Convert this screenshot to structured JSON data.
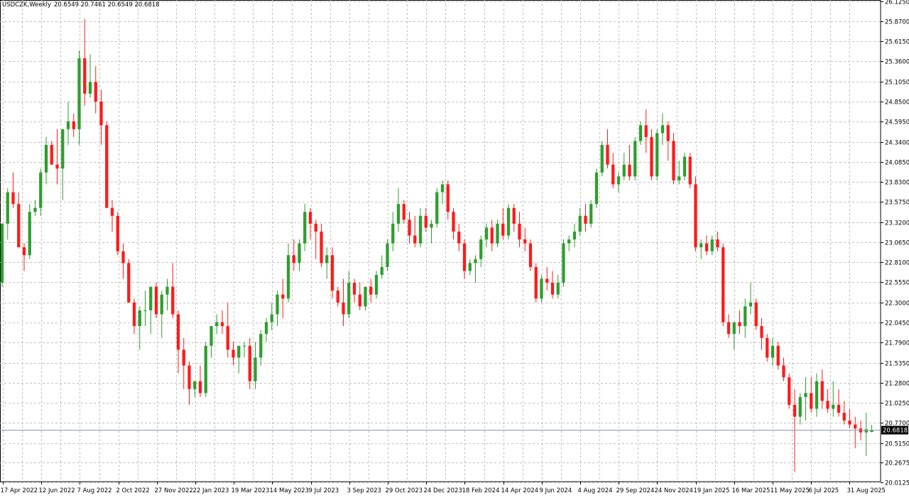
{
  "header": {
    "symbol": "USDCZK",
    "timeframe": "Weekly",
    "ohlc": "20.6549 20.7461 20.6549 20.6818"
  },
  "colors": {
    "bull": "#2e9e2e",
    "bear": "#ff1a1a",
    "grid": "#c0c0c0",
    "price_line": "#8c96b4",
    "price_tag_bg": "#000000",
    "price_tag_text": "#ffffff"
  },
  "chart_data": {
    "type": "candlestick",
    "ylim": [
      20.025,
      26.14
    ],
    "y_ticks": [
      "26.1250",
      "25.8700",
      "25.6150",
      "25.3600",
      "25.1050",
      "24.8500",
      "24.5950",
      "24.3400",
      "24.0850",
      "23.8300",
      "23.5750",
      "23.3200",
      "23.0650",
      "22.8100",
      "22.5550",
      "22.3000",
      "22.0450",
      "21.7900",
      "21.5350",
      "21.2800",
      "21.0250",
      "20.7700",
      "20.5150",
      "20.2675",
      "20.0125"
    ],
    "x_ticks": [
      "17 Apr 2022",
      "12 Jun 2022",
      "7 Aug 2022",
      "2 Oct 2022",
      "27 Nov 2022",
      "22 Jan 2023",
      "19 Mar 2023",
      "14 May 2023",
      "9 Jul 2023",
      "3 Sep 2023",
      "29 Oct 2023",
      "24 Dec 2023",
      "18 Feb 2024",
      "14 Apr 2024",
      "9 Jun 2024",
      "4 Aug 2024",
      "29 Sep 2024",
      "24 Nov 2024",
      "19 Jan 2025",
      "16 Mar 2025",
      "11 May 2025",
      "6 Jul 2025",
      "31 Aug 2025"
    ],
    "last_price": "20.6818",
    "close_values": [
      22.6,
      23.75,
      23.6,
      23.1,
      22.9,
      23.45,
      23.5,
      23.95,
      24.25,
      24.0,
      23.55,
      24.5,
      24.55,
      24.6,
      25.5,
      24.85,
      25.05,
      24.6,
      24.5,
      23.55,
      23.35,
      22.8,
      22.6,
      22.15,
      22.0,
      22.25,
      22.2,
      21.55,
      21.25,
      21.5,
      21.8,
      22.0,
      21.7,
      21.4,
      21.5,
      22.1,
      22.35,
      22.8,
      22.95,
      23.35,
      22.8,
      22.45,
      22.1,
      22.35,
      22.15,
      22.45,
      22.7,
      22.75,
      22.95,
      23.25,
      23.4,
      23.5,
      23.1,
      23.25,
      23.1,
      23.0,
      22.85,
      22.7,
      22.6,
      22.35,
      22.75,
      22.6,
      23.3,
      23.45,
      23.9,
      23.5,
      23.7,
      23.2,
      23.25,
      22.75,
      22.55,
      22.8,
      22.55,
      22.45,
      22.35,
      22.55,
      22.8,
      23.0,
      23.05,
      23.2,
      23.25,
      23.15,
      23.0,
      22.75,
      22.5,
      22.4,
      22.45,
      23.0,
      23.3,
      23.5,
      23.7,
      24.3,
      24.1,
      24.2,
      24.45,
      24.5,
      24.45,
      24.0,
      24.2,
      24.25,
      24.0,
      23.95,
      23.2,
      23.05,
      23.1,
      22.9,
      22.7,
      22.3,
      22.05,
      22.2,
      22.15,
      21.9,
      21.85,
      21.5,
      21.3,
      21.2,
      21.05,
      21.2,
      21.0,
      20.9,
      20.85,
      20.8,
      20.7,
      20.75,
      20.68
    ],
    "weekly_candles": [
      [
        22.55,
        23.3,
        22.5,
        23.3
      ],
      [
        23.3,
        23.75,
        23.1,
        23.7
      ],
      [
        23.7,
        23.95,
        23.5,
        23.55
      ],
      [
        23.55,
        23.7,
        23.0,
        23.0
      ],
      [
        23.0,
        23.05,
        22.7,
        22.9
      ],
      [
        22.9,
        23.55,
        22.85,
        23.45
      ],
      [
        23.45,
        23.6,
        23.4,
        23.5
      ],
      [
        23.5,
        24.0,
        23.4,
        23.95
      ],
      [
        23.95,
        24.4,
        23.8,
        24.3
      ],
      [
        24.3,
        24.35,
        24.05,
        24.05
      ],
      [
        24.05,
        24.5,
        23.8,
        24.0
      ],
      [
        24.0,
        24.5,
        23.6,
        24.5
      ],
      [
        24.5,
        24.85,
        24.3,
        24.6
      ],
      [
        24.6,
        24.7,
        24.4,
        24.5
      ],
      [
        24.5,
        25.5,
        24.3,
        25.4
      ],
      [
        25.4,
        25.9,
        24.8,
        24.95
      ],
      [
        24.95,
        25.45,
        24.9,
        25.1
      ],
      [
        25.1,
        25.3,
        24.7,
        24.85
      ],
      [
        24.85,
        25.0,
        24.3,
        24.55
      ],
      [
        24.55,
        24.6,
        23.5,
        23.5
      ],
      [
        23.5,
        23.6,
        23.2,
        23.4
      ],
      [
        23.4,
        23.45,
        22.9,
        22.95
      ],
      [
        22.95,
        23.05,
        22.6,
        22.8
      ],
      [
        22.8,
        22.85,
        22.3,
        22.3
      ],
      [
        22.3,
        22.35,
        21.9,
        22.0
      ],
      [
        22.0,
        22.25,
        21.7,
        22.2
      ],
      [
        22.2,
        22.45,
        22.0,
        22.2
      ],
      [
        22.2,
        22.5,
        21.9,
        22.5
      ],
      [
        22.5,
        22.55,
        22.1,
        22.15
      ],
      [
        22.15,
        22.45,
        21.85,
        22.4
      ],
      [
        22.4,
        22.6,
        22.2,
        22.5
      ],
      [
        22.5,
        22.8,
        22.1,
        22.15
      ],
      [
        22.15,
        22.2,
        21.4,
        21.7
      ],
      [
        21.7,
        21.85,
        21.2,
        21.5
      ],
      [
        21.5,
        21.55,
        21.0,
        21.2
      ],
      [
        21.2,
        21.3,
        21.1,
        21.3
      ],
      [
        21.3,
        21.5,
        21.1,
        21.15
      ],
      [
        21.15,
        21.8,
        21.1,
        21.75
      ],
      [
        21.75,
        22.0,
        21.6,
        22.0
      ],
      [
        22.0,
        22.15,
        21.9,
        22.05
      ],
      [
        22.05,
        22.2,
        21.9,
        22.0
      ],
      [
        22.0,
        22.3,
        21.6,
        21.7
      ],
      [
        21.7,
        21.8,
        21.5,
        21.6
      ],
      [
        21.6,
        21.7,
        21.4,
        21.75
      ],
      [
        21.75,
        21.8,
        21.6,
        21.75
      ],
      [
        21.75,
        21.85,
        21.2,
        21.3
      ],
      [
        21.3,
        21.8,
        21.2,
        21.6
      ],
      [
        21.6,
        21.95,
        21.5,
        21.9
      ],
      [
        21.9,
        22.1,
        21.8,
        22.05
      ],
      [
        22.05,
        22.3,
        21.95,
        22.15
      ],
      [
        22.15,
        22.45,
        22.0,
        22.4
      ],
      [
        22.4,
        22.6,
        22.1,
        22.35
      ],
      [
        22.35,
        23.05,
        22.3,
        22.9
      ],
      [
        22.9,
        23.1,
        22.7,
        22.8
      ],
      [
        22.8,
        23.1,
        22.7,
        23.05
      ],
      [
        23.05,
        23.55,
        22.95,
        23.45
      ],
      [
        23.45,
        23.5,
        23.1,
        23.3
      ],
      [
        23.3,
        23.35,
        22.85,
        23.2
      ],
      [
        23.2,
        23.3,
        22.75,
        22.8
      ],
      [
        22.8,
        23.0,
        22.6,
        22.9
      ],
      [
        22.9,
        23.0,
        22.35,
        22.45
      ],
      [
        22.45,
        22.5,
        22.25,
        22.3
      ],
      [
        22.3,
        22.6,
        22.0,
        22.15
      ],
      [
        22.15,
        22.7,
        22.1,
        22.55
      ],
      [
        22.55,
        22.6,
        22.3,
        22.4
      ],
      [
        22.4,
        22.55,
        22.2,
        22.25
      ],
      [
        22.25,
        22.5,
        22.2,
        22.5
      ],
      [
        22.5,
        22.6,
        22.3,
        22.4
      ],
      [
        22.4,
        22.7,
        22.35,
        22.65
      ],
      [
        22.65,
        22.9,
        22.6,
        22.75
      ],
      [
        22.75,
        23.1,
        22.7,
        23.05
      ],
      [
        23.05,
        23.45,
        22.95,
        23.3
      ],
      [
        23.3,
        23.75,
        23.2,
        23.55
      ],
      [
        23.55,
        23.6,
        23.3,
        23.35
      ],
      [
        23.35,
        23.45,
        23.05,
        23.15
      ],
      [
        23.15,
        23.4,
        23.0,
        23.05
      ],
      [
        23.05,
        23.5,
        23.0,
        23.4
      ],
      [
        23.4,
        23.5,
        23.2,
        23.25
      ],
      [
        23.25,
        23.35,
        23.05,
        23.3
      ],
      [
        23.3,
        23.75,
        23.25,
        23.7
      ],
      [
        23.7,
        23.85,
        23.55,
        23.8
      ],
      [
        23.8,
        23.85,
        23.35,
        23.45
      ],
      [
        23.45,
        23.5,
        23.1,
        23.2
      ],
      [
        23.2,
        23.3,
        22.95,
        23.05
      ],
      [
        23.05,
        23.1,
        22.6,
        22.7
      ],
      [
        22.7,
        22.85,
        22.65,
        22.8
      ],
      [
        22.8,
        22.9,
        22.55,
        22.85
      ],
      [
        22.85,
        23.15,
        22.75,
        23.1
      ],
      [
        23.1,
        23.3,
        23.0,
        23.25
      ],
      [
        23.25,
        23.35,
        22.95,
        23.05
      ],
      [
        23.05,
        23.35,
        23.0,
        23.3
      ],
      [
        23.3,
        23.5,
        23.1,
        23.15
      ],
      [
        23.15,
        23.55,
        23.1,
        23.5
      ],
      [
        23.5,
        23.55,
        23.2,
        23.3
      ],
      [
        23.3,
        23.45,
        23.0,
        23.1
      ],
      [
        23.1,
        23.25,
        22.95,
        23.05
      ],
      [
        23.05,
        23.1,
        22.7,
        22.75
      ],
      [
        22.75,
        22.8,
        22.3,
        22.35
      ],
      [
        22.35,
        22.65,
        22.3,
        22.6
      ],
      [
        22.6,
        22.75,
        22.45,
        22.55
      ],
      [
        22.55,
        22.7,
        22.35,
        22.4
      ],
      [
        22.4,
        22.65,
        22.35,
        22.55
      ],
      [
        22.55,
        23.1,
        22.5,
        23.05
      ],
      [
        23.05,
        23.15,
        22.95,
        23.1
      ],
      [
        23.1,
        23.3,
        23.0,
        23.2
      ],
      [
        23.2,
        23.5,
        23.15,
        23.4
      ],
      [
        23.4,
        23.55,
        23.2,
        23.3
      ],
      [
        23.3,
        23.6,
        23.25,
        23.55
      ],
      [
        23.55,
        24.0,
        23.5,
        23.95
      ],
      [
        23.95,
        24.35,
        23.9,
        24.3
      ],
      [
        24.3,
        24.5,
        24.0,
        24.05
      ],
      [
        24.05,
        24.2,
        23.75,
        23.8
      ],
      [
        23.8,
        23.95,
        23.7,
        23.9
      ],
      [
        23.9,
        24.2,
        23.85,
        24.05
      ],
      [
        24.05,
        24.3,
        23.85,
        23.9
      ],
      [
        23.9,
        24.4,
        23.85,
        24.35
      ],
      [
        24.35,
        24.6,
        24.3,
        24.55
      ],
      [
        24.55,
        24.75,
        24.2,
        24.4
      ],
      [
        24.4,
        24.5,
        23.85,
        23.9
      ],
      [
        23.9,
        24.5,
        23.85,
        24.45
      ],
      [
        24.45,
        24.7,
        24.3,
        24.55
      ],
      [
        24.55,
        24.6,
        24.1,
        24.35
      ],
      [
        24.35,
        24.45,
        23.8,
        23.85
      ],
      [
        23.85,
        24.1,
        23.8,
        23.9
      ],
      [
        23.9,
        24.2,
        23.85,
        24.15
      ],
      [
        24.15,
        24.2,
        23.75,
        23.8
      ],
      [
        23.8,
        23.9,
        22.95,
        23.0
      ],
      [
        23.0,
        23.1,
        22.85,
        23.05
      ],
      [
        23.05,
        23.15,
        22.9,
        22.95
      ],
      [
        22.95,
        23.15,
        22.9,
        23.1
      ],
      [
        23.1,
        23.2,
        22.95,
        23.0
      ],
      [
        23.0,
        23.05,
        22.0,
        22.05
      ],
      [
        22.05,
        22.15,
        21.85,
        21.9
      ],
      [
        21.9,
        22.05,
        21.7,
        22.05
      ],
      [
        22.05,
        22.2,
        21.9,
        22.0
      ],
      [
        22.0,
        22.35,
        21.85,
        22.25
      ],
      [
        22.25,
        22.55,
        22.15,
        22.3
      ],
      [
        22.3,
        22.35,
        21.95,
        22.0
      ],
      [
        22.0,
        22.1,
        21.7,
        21.85
      ],
      [
        21.85,
        21.9,
        21.55,
        21.6
      ],
      [
        21.6,
        21.85,
        21.5,
        21.75
      ],
      [
        21.75,
        21.8,
        21.45,
        21.5
      ],
      [
        21.5,
        21.6,
        21.3,
        21.35
      ],
      [
        21.35,
        21.4,
        20.95,
        21.0
      ],
      [
        21.0,
        21.2,
        20.15,
        20.85
      ],
      [
        20.85,
        21.15,
        20.75,
        21.1
      ],
      [
        21.1,
        21.35,
        20.8,
        21.15
      ],
      [
        21.15,
        21.35,
        20.9,
        20.95
      ],
      [
        20.95,
        21.4,
        20.85,
        21.3
      ],
      [
        21.3,
        21.45,
        20.95,
        21.05
      ],
      [
        21.05,
        21.2,
        20.9,
        20.95
      ],
      [
        20.95,
        21.3,
        20.85,
        21.0
      ],
      [
        21.0,
        21.2,
        20.85,
        20.9
      ],
      [
        20.9,
        21.05,
        20.75,
        20.8
      ],
      [
        20.8,
        20.95,
        20.7,
        20.75
      ],
      [
        20.75,
        20.85,
        20.45,
        20.7
      ],
      [
        20.7,
        20.8,
        20.55,
        20.65
      ],
      [
        20.65,
        20.9,
        20.35,
        20.69
      ],
      [
        20.6549,
        20.7461,
        20.6549,
        20.6818
      ]
    ]
  }
}
